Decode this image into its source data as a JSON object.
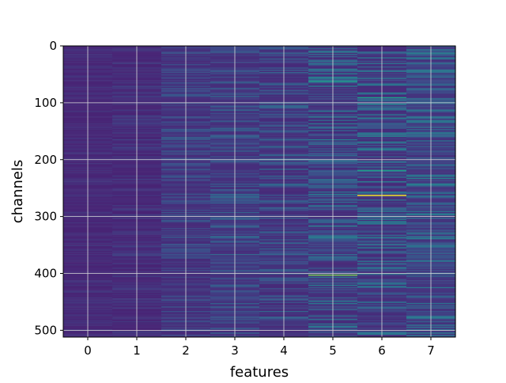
{
  "chart_data": {
    "type": "heatmap",
    "title": "",
    "xlabel": "features",
    "ylabel": "channels",
    "x_ticks": [
      "0",
      "1",
      "2",
      "3",
      "4",
      "5",
      "6",
      "7"
    ],
    "y_ticks": [
      "0",
      "100",
      "200",
      "300",
      "400",
      "500"
    ],
    "x_range": [
      -0.5,
      7.5
    ],
    "y_range": [
      0,
      512
    ],
    "y_inverted": true,
    "columns": 8,
    "rows": 512,
    "colormap": "viridis",
    "grid": true,
    "hot_spots": [
      {
        "feature": 6,
        "channel": 262,
        "level": 1.0
      },
      {
        "feature": 5,
        "channel": 402,
        "level": 0.8
      },
      {
        "feature": 6,
        "channel": 218,
        "level": 0.55
      },
      {
        "feature": 5,
        "channel": 62,
        "level": 0.5
      },
      {
        "feature": 6,
        "channel": 90,
        "level": 0.55
      }
    ],
    "column_variation": [
      0.06,
      0.09,
      0.16,
      0.2,
      0.22,
      0.3,
      0.32,
      0.3
    ],
    "column_base": [
      0.1,
      0.1,
      0.12,
      0.13,
      0.12,
      0.12,
      0.12,
      0.14
    ]
  }
}
